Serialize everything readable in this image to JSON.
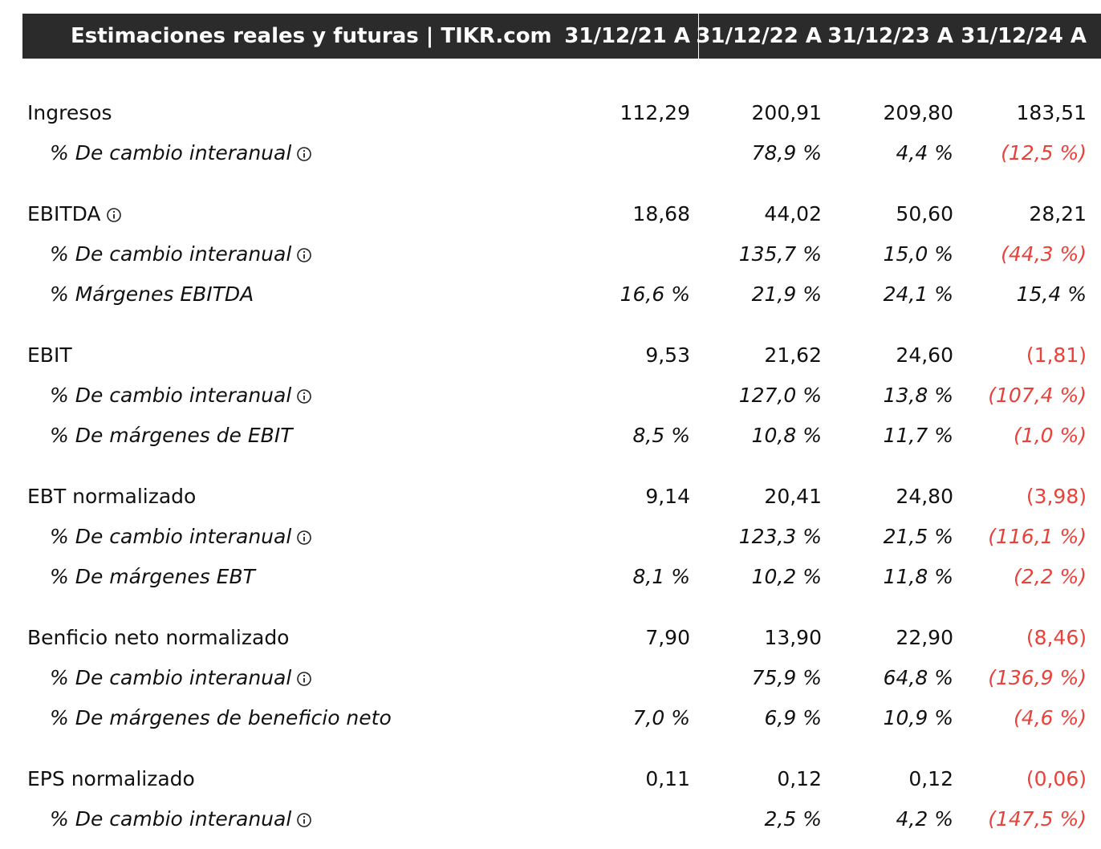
{
  "header": {
    "title": "Estimaciones reales y futuras | TIKR.com",
    "columns": [
      "31/12/21 A",
      "31/12/22 A",
      "31/12/23 A",
      "31/12/24 A"
    ]
  },
  "table": {
    "rows": [
      {
        "label": "Ingresos",
        "sub": false,
        "info": false,
        "cells": [
          "112,29",
          "200,91",
          "209,80",
          "183,51"
        ]
      },
      {
        "label": "% De cambio interanual",
        "sub": true,
        "info": true,
        "cells": [
          null,
          "78,9 %",
          "4,4 %",
          "(12,5 %)"
        ]
      },
      {
        "label": "EBITDA",
        "sub": false,
        "info": true,
        "cells": [
          "18,68",
          "44,02",
          "50,60",
          "28,21"
        ]
      },
      {
        "label": "% De cambio interanual",
        "sub": true,
        "info": true,
        "cells": [
          null,
          "135,7 %",
          "15,0 %",
          "(44,3 %)"
        ]
      },
      {
        "label": "% Márgenes EBITDA",
        "sub": true,
        "info": false,
        "cells": [
          "16,6 %",
          "21,9 %",
          "24,1 %",
          "15,4 %"
        ]
      },
      {
        "label": "EBIT",
        "sub": false,
        "info": false,
        "cells": [
          "9,53",
          "21,62",
          "24,60",
          "(1,81)"
        ]
      },
      {
        "label": "% De cambio interanual",
        "sub": true,
        "info": true,
        "cells": [
          null,
          "127,0 %",
          "13,8 %",
          "(107,4 %)"
        ]
      },
      {
        "label": "% De márgenes de EBIT",
        "sub": true,
        "info": false,
        "cells": [
          "8,5 %",
          "10,8 %",
          "11,7 %",
          "(1,0 %)"
        ]
      },
      {
        "label": "EBT normalizado",
        "sub": false,
        "info": false,
        "cells": [
          "9,14",
          "20,41",
          "24,80",
          "(3,98)"
        ]
      },
      {
        "label": "% De cambio interanual",
        "sub": true,
        "info": true,
        "cells": [
          null,
          "123,3 %",
          "21,5 %",
          "(116,1 %)"
        ]
      },
      {
        "label": "% De márgenes EBT",
        "sub": true,
        "info": false,
        "cells": [
          "8,1 %",
          "10,2 %",
          "11,8 %",
          "(2,2 %)"
        ]
      },
      {
        "label": "Benficio neto normalizado",
        "sub": false,
        "info": false,
        "cells": [
          "7,90",
          "13,90",
          "22,90",
          "(8,46)"
        ]
      },
      {
        "label": "% De cambio interanual",
        "sub": true,
        "info": true,
        "cells": [
          null,
          "75,9 %",
          "64,8 %",
          "(136,9 %)"
        ]
      },
      {
        "label": "% De márgenes de beneficio neto",
        "sub": true,
        "info": false,
        "cells": [
          "7,0 %",
          "6,9 %",
          "10,9 %",
          "(4,6 %)"
        ]
      },
      {
        "label": "EPS normalizado",
        "sub": false,
        "info": false,
        "cells": [
          "0,11",
          "0,12",
          "0,12",
          "(0,06)"
        ]
      },
      {
        "label": "% De cambio interanual",
        "sub": true,
        "info": true,
        "cells": [
          null,
          "2,5 %",
          "4,2 %",
          "(147,5 %)"
        ]
      }
    ]
  }
}
